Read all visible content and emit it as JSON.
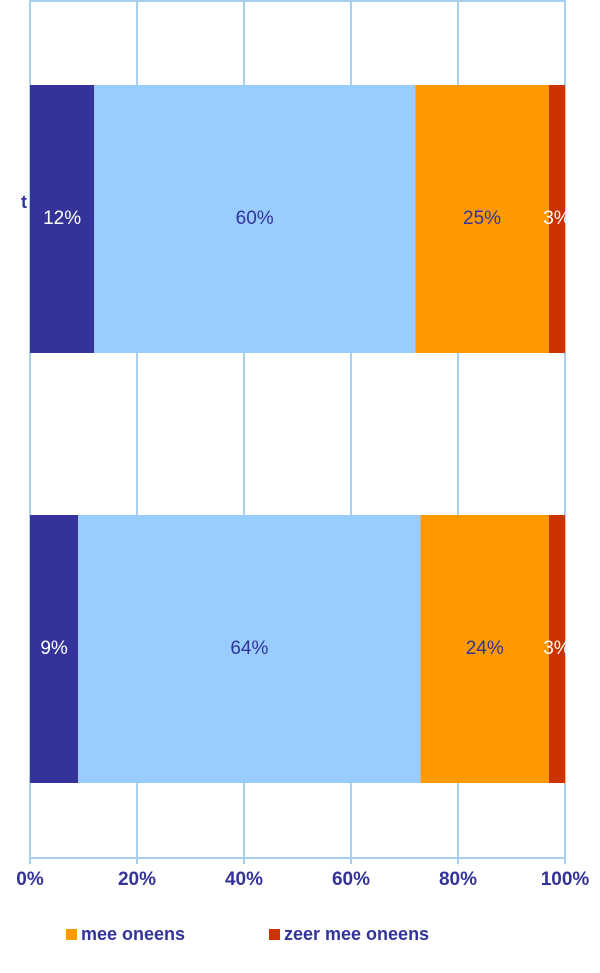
{
  "chart_data": {
    "type": "stacked_bar_horizontal",
    "categories": [
      "t",
      null
    ],
    "series": [
      {
        "color": "#333399",
        "values": [
          12,
          9
        ],
        "value_labels": [
          "12%",
          "9%"
        ]
      },
      {
        "color": "#99ccff",
        "values": [
          60,
          64
        ],
        "value_labels": [
          "60%",
          "64%"
        ]
      },
      {
        "name": "mee oneens",
        "color": "#ff9900",
        "values": [
          25,
          24
        ],
        "value_labels": [
          "25%",
          "24%"
        ]
      },
      {
        "name": "zeer mee oneens",
        "color": "#cc3300",
        "values": [
          3,
          3
        ],
        "value_labels": [
          "3%",
          "3%"
        ]
      }
    ],
    "xlim": [
      0,
      100
    ],
    "xticks": [
      {
        "value": 0,
        "label": "0%"
      },
      {
        "value": 20,
        "label": "20%"
      },
      {
        "value": 40,
        "label": "40%"
      },
      {
        "value": 60,
        "label": "60%"
      },
      {
        "value": 80,
        "label": "80%"
      },
      {
        "value": 100,
        "label": "100%"
      }
    ],
    "grid": true
  }
}
